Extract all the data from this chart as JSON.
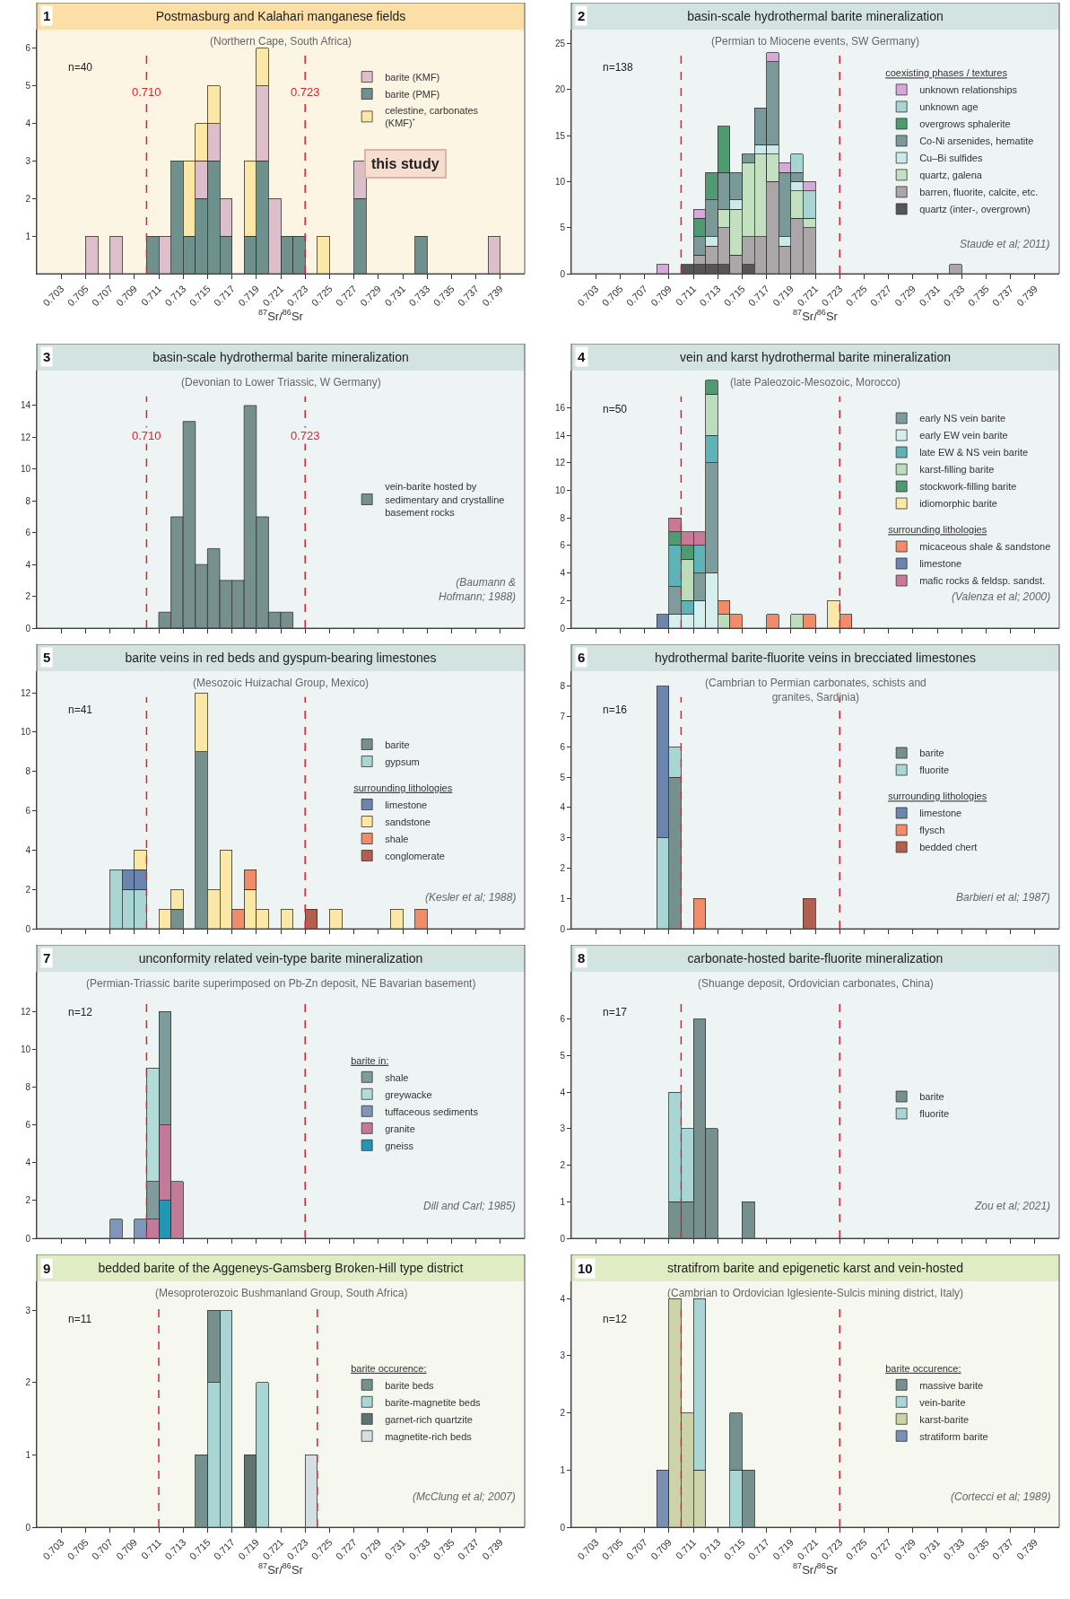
{
  "chart_data": [
    {
      "type": "bar",
      "title": "Postmasburg and Kalahari manganese fields",
      "subtitle": "(Northern Cape, South Africa)",
      "xlabel": "$^{87}$Sr/$^{86}$Sr",
      "stacked": true,
      "legend": "top right",
      "x": [
        0.7055,
        0.7075,
        0.7105,
        0.7115,
        0.7125,
        0.7135,
        0.7145,
        0.7155,
        0.7165,
        0.7185,
        0.7195,
        0.7205,
        0.7215,
        0.7225,
        0.7245,
        0.7275,
        0.7325,
        0.7385
      ],
      "series": [
        {
          "name": "barite (PMF)",
          "color": "#6e918e",
          "values": [
            null,
            null,
            1,
            null,
            3,
            1,
            2,
            3,
            1,
            1,
            3,
            null,
            1,
            1,
            null,
            2,
            1,
            null
          ]
        },
        {
          "name": "barite (KMF)",
          "color": "#dcbfcb",
          "values": [
            1,
            1,
            null,
            1,
            null,
            null,
            1,
            1,
            1,
            null,
            2,
            2,
            null,
            null,
            null,
            1,
            null,
            1
          ]
        },
        {
          "name": "celestine, carbonates (KMF)$^{*}$",
          "color": "#fbe8a6",
          "values": [
            null,
            null,
            null,
            null,
            null,
            2,
            1,
            1,
            null,
            2,
            1,
            null,
            null,
            null,
            1,
            null,
            null,
            null
          ]
        }
      ],
      "xlim": [
        0.701,
        0.741
      ],
      "xticks": [
        0.703,
        0.705,
        0.707,
        0.709,
        0.711,
        0.713,
        0.715,
        0.717,
        0.719,
        0.721,
        0.723,
        0.725,
        0.727,
        0.729,
        0.731,
        0.733,
        0.735,
        0.737,
        0.739
      ],
      "ylim": [
        0,
        6.5
      ],
      "yticks": [
        1,
        2,
        3,
        4,
        5,
        6
      ],
      "ref_lines": [
        {
          "axis": "x",
          "value": 0.71,
          "label": "0.710",
          "color": "#e02030",
          "line_style": "dashed"
        },
        {
          "axis": "x",
          "value": 0.723,
          "label": "0.723",
          "color": "#e02030",
          "line_style": "dashed"
        }
      ],
      "annotations": [
        "1",
        "n=40",
        "this study"
      ]
    },
    {
      "type": "bar",
      "title": "basin-scale hydrothermal barite mineralization",
      "subtitle": "(Permian to Miocene events, SW Germany)",
      "xlabel": "$^{87}$Sr/$^{86}$Sr",
      "stacked": true,
      "legend": "top right",
      "legend_title": "coexisting phases / textures",
      "x": [
        0.7085,
        0.7105,
        0.7115,
        0.7125,
        0.7135,
        0.7145,
        0.7155,
        0.7165,
        0.7175,
        0.7185,
        0.7195,
        0.7205,
        0.7325
      ],
      "series": [
        {
          "name": "quartz (inter-, overgrown)",
          "color": "#555555",
          "values": [
            null,
            1,
            1,
            1,
            1,
            null,
            1,
            null,
            null,
            null,
            null,
            null,
            null
          ]
        },
        {
          "name": "barren, fluorite, calcite, etc.",
          "color": "#aba7a9",
          "values": [
            null,
            null,
            1,
            2,
            4,
            2,
            3,
            4,
            10,
            3,
            6,
            5,
            1
          ]
        },
        {
          "name": "quartz, galena",
          "color": "#c3e1c1",
          "values": [
            null,
            null,
            null,
            null,
            2,
            5,
            8,
            9,
            3,
            null,
            3,
            1,
            null
          ]
        },
        {
          "name": "Cu–Bi sulfides",
          "color": "#cdeaea",
          "values": [
            null,
            null,
            null,
            1,
            null,
            1,
            null,
            1,
            1,
            1,
            1,
            null,
            null
          ]
        },
        {
          "name": "Co-Ni arsenides, hematite",
          "color": "#7a9a99",
          "values": [
            null,
            null,
            2,
            4,
            4,
            3,
            1,
            4,
            9,
            7,
            1,
            null,
            null
          ]
        },
        {
          "name": "overgrows sphalerite",
          "color": "#4f9a72",
          "values": [
            null,
            null,
            2,
            3,
            5,
            null,
            null,
            null,
            null,
            null,
            null,
            null,
            null
          ]
        },
        {
          "name": "unknown age",
          "color": "#a8d4d4",
          "values": [
            null,
            null,
            null,
            null,
            null,
            null,
            null,
            null,
            null,
            null,
            2,
            3,
            null
          ]
        },
        {
          "name": "unknown relationships",
          "color": "#d9a8da",
          "values": [
            1,
            null,
            1,
            null,
            null,
            null,
            null,
            null,
            1,
            1,
            null,
            1,
            null
          ]
        }
      ],
      "xlim": [
        0.701,
        0.741
      ],
      "xticks": [
        0.703,
        0.705,
        0.707,
        0.709,
        0.711,
        0.713,
        0.715,
        0.717,
        0.719,
        0.721,
        0.723,
        0.725,
        0.727,
        0.729,
        0.731,
        0.733,
        0.735,
        0.737,
        0.739
      ],
      "ylim": [
        0,
        26.5
      ],
      "yticks": [
        0,
        5,
        10,
        15,
        20,
        25
      ],
      "ref_lines": [
        {
          "axis": "x",
          "value": 0.71,
          "color": "#e02030",
          "line_style": "dashed"
        },
        {
          "axis": "x",
          "value": 0.723,
          "color": "#e02030",
          "line_style": "dashed"
        }
      ],
      "annotations": [
        "2",
        "n=138",
        "Staude et al; 2011)"
      ]
    },
    {
      "type": "bar",
      "title": "basin-scale hydrothermal barite mineralization",
      "subtitle": "(Devonian to Lower Triassic, W Germany)",
      "stacked": true,
      "legend": "right",
      "tick_labels": "y",
      "x": [
        0.7115,
        0.7125,
        0.7135,
        0.7145,
        0.7155,
        0.7165,
        0.7175,
        0.7185,
        0.7195,
        0.7205,
        0.7215
      ],
      "series": [
        {
          "name": "vein-barite hosted by sedimentary and crystalline basement rocks",
          "color": "#76908e",
          "values": [
            1,
            7,
            13,
            4,
            5,
            3,
            3,
            14,
            7,
            1,
            1
          ]
        }
      ],
      "xlim": [
        0.701,
        0.741
      ],
      "xticks": [
        0.703,
        0.705,
        0.707,
        0.709,
        0.711,
        0.713,
        0.715,
        0.717,
        0.719,
        0.721,
        0.723,
        0.725,
        0.727,
        0.729,
        0.731,
        0.733,
        0.735,
        0.737,
        0.739
      ],
      "ylim": [
        0,
        16.2
      ],
      "yticks": [
        0,
        2,
        4,
        6,
        8,
        10,
        12,
        14
      ],
      "ref_lines": [
        {
          "axis": "x",
          "value": 0.71,
          "label": "0.710",
          "color": "#e02030",
          "line_style": "dashed"
        },
        {
          "axis": "x",
          "value": 0.723,
          "label": "0.723",
          "color": "#e02030",
          "line_style": "dashed"
        }
      ],
      "annotations": [
        "3",
        "(Baumann & Hofmann; 1988)"
      ]
    },
    {
      "type": "bar",
      "title": "vein and karst hydrothermal barite mineralization",
      "subtitle": "(late Paleozoic-Mesozoic, Morocco)",
      "stacked": true,
      "legend": "right",
      "tick_labels": "y",
      "x": [
        0.7085,
        0.7095,
        0.7105,
        0.7115,
        0.7125,
        0.7135,
        0.7145,
        0.7175,
        0.7195,
        0.7205,
        0.7225,
        0.7235
      ],
      "series": [
        {
          "name": "early EW vein barite",
          "color": "#d5eeee",
          "values": [
            null,
            1,
            1,
            2,
            4,
            null,
            null,
            null,
            null,
            null,
            null,
            null
          ]
        },
        {
          "name": "early NS vein barite",
          "color": "#7f9c9c",
          "values": [
            null,
            2,
            null,
            2,
            8,
            null,
            null,
            null,
            null,
            null,
            null,
            null
          ]
        },
        {
          "name": "late EW & NS vein barite",
          "color": "#5fb3b8",
          "values": [
            null,
            3,
            1,
            2,
            2,
            null,
            null,
            null,
            null,
            null,
            null,
            null
          ]
        },
        {
          "name": "karst-filling barite",
          "color": "#bcdcbc",
          "values": [
            null,
            null,
            3,
            null,
            3,
            1,
            null,
            null,
            1,
            null,
            null,
            null
          ]
        },
        {
          "name": "stockwork-filling barite",
          "color": "#4f9a72",
          "values": [
            null,
            1,
            1,
            null,
            1,
            null,
            null,
            null,
            null,
            null,
            null,
            null
          ]
        },
        {
          "name": "idiomorphic barite",
          "color": "#fbe8a6",
          "values": [
            null,
            null,
            null,
            null,
            null,
            null,
            null,
            null,
            null,
            null,
            2,
            null
          ]
        },
        {
          "name": "micaceous shale & sandstone",
          "color": "#f08c6a",
          "values": [
            null,
            null,
            null,
            null,
            null,
            1,
            1,
            1,
            null,
            1,
            null,
            1
          ]
        },
        {
          "name": "limestone",
          "color": "#6b85ae",
          "values": [
            1,
            null,
            null,
            null,
            null,
            null,
            null,
            null,
            null,
            null,
            null,
            null
          ]
        },
        {
          "name": "mafic rocks & feldsp. sandst.",
          "color": "#c97896",
          "values": [
            null,
            1,
            1,
            1,
            null,
            null,
            null,
            null,
            null,
            null,
            null,
            null
          ]
        }
      ],
      "xlim": [
        0.701,
        0.741
      ],
      "xticks": [
        0.703,
        0.705,
        0.707,
        0.709,
        0.711,
        0.713,
        0.715,
        0.717,
        0.719,
        0.721,
        0.723,
        0.725,
        0.727,
        0.729,
        0.731,
        0.733,
        0.735,
        0.737,
        0.739
      ],
      "ylim": [
        0,
        18.7
      ],
      "yticks": [
        0,
        2,
        4,
        6,
        8,
        10,
        12,
        14,
        16
      ],
      "ref_lines": [
        {
          "axis": "x",
          "value": 0.71,
          "color": "#e02030",
          "line_style": "dashed"
        },
        {
          "axis": "x",
          "value": 0.723,
          "color": "#e02030",
          "line_style": "dashed"
        }
      ],
      "annotations": [
        "4",
        "n=50",
        "surrounding lithologies",
        "(Valenza et al; 2000)"
      ]
    },
    {
      "type": "bar",
      "title": "barite veins in red beds and gyspum-bearing limestones",
      "subtitle": "(Mesozoic Huizachal Group, Mexico)",
      "stacked": true,
      "legend": "right",
      "tick_labels": "y",
      "x": [
        0.7075,
        0.7085,
        0.7095,
        0.7115,
        0.7125,
        0.7145,
        0.7155,
        0.7165,
        0.7175,
        0.7185,
        0.7195,
        0.7215,
        0.7235,
        0.7255,
        0.7305,
        0.7325
      ],
      "series": [
        {
          "name": "barite",
          "color": "#76908e",
          "values": [
            null,
            null,
            null,
            null,
            1,
            9,
            null,
            null,
            null,
            null,
            null,
            null,
            null,
            null,
            null,
            null
          ]
        },
        {
          "name": "gypsum",
          "color": "#a9d6d4",
          "values": [
            3,
            2,
            2,
            null,
            null,
            null,
            null,
            null,
            null,
            null,
            null,
            null,
            null,
            null,
            null,
            null
          ]
        },
        {
          "name": "limestone",
          "color": "#6b85ae",
          "values": [
            null,
            1,
            1,
            null,
            null,
            null,
            null,
            null,
            null,
            null,
            null,
            null,
            null,
            null,
            null,
            null
          ]
        },
        {
          "name": "sandstone",
          "color": "#fbe8a6",
          "values": [
            null,
            null,
            1,
            1,
            1,
            3,
            2,
            4,
            null,
            2,
            1,
            1,
            null,
            1,
            1,
            null
          ]
        },
        {
          "name": "shale",
          "color": "#f08c6a",
          "values": [
            null,
            null,
            null,
            null,
            null,
            null,
            null,
            null,
            1,
            1,
            null,
            null,
            null,
            null,
            null,
            1
          ]
        },
        {
          "name": "conglomerate",
          "color": "#b25f50",
          "values": [
            null,
            null,
            null,
            null,
            null,
            null,
            null,
            null,
            null,
            null,
            null,
            null,
            1,
            null,
            null,
            null
          ]
        }
      ],
      "xlim": [
        0.701,
        0.741
      ],
      "xticks": [
        0.703,
        0.705,
        0.707,
        0.709,
        0.711,
        0.713,
        0.715,
        0.717,
        0.719,
        0.721,
        0.723,
        0.725,
        0.727,
        0.729,
        0.731,
        0.733,
        0.735,
        0.737,
        0.739
      ],
      "ylim": [
        0,
        13.1
      ],
      "yticks": [
        0,
        2,
        4,
        6,
        8,
        10,
        12
      ],
      "ref_lines": [
        {
          "axis": "x",
          "value": 0.71,
          "color": "#e02030",
          "line_style": "dashed"
        },
        {
          "axis": "x",
          "value": 0.723,
          "color": "#e02030",
          "line_style": "dashed"
        }
      ],
      "annotations": [
        "5",
        "n=41",
        "surrounding lithologies",
        "(Kesler et al; 1988)"
      ]
    },
    {
      "type": "bar",
      "title": "hydrothermal barite-fluorite veins in brecciated limestones",
      "subtitle": "(Cambrian to Permian carbonates, schists and granites, Sardinia)",
      "stacked": true,
      "legend": "right",
      "tick_labels": "y",
      "x": [
        0.7085,
        0.7095,
        0.7115,
        0.7205
      ],
      "series": [
        {
          "name": "barite",
          "color": "#76908e",
          "values": [
            null,
            5,
            null,
            null
          ]
        },
        {
          "name": "fluorite",
          "color": "#a9d6d4",
          "values": [
            3,
            1,
            null,
            null
          ]
        },
        {
          "name": "limestone",
          "color": "#6b85ae",
          "values": [
            5,
            null,
            null,
            null
          ]
        },
        {
          "name": "flysch",
          "color": "#f08c6a",
          "values": [
            null,
            null,
            1,
            null
          ]
        },
        {
          "name": "bedded chert",
          "color": "#b25f50",
          "values": [
            null,
            null,
            null,
            1
          ]
        }
      ],
      "xlim": [
        0.701,
        0.741
      ],
      "xticks": [
        0.703,
        0.705,
        0.707,
        0.709,
        0.711,
        0.713,
        0.715,
        0.717,
        0.719,
        0.721,
        0.723,
        0.725,
        0.727,
        0.729,
        0.731,
        0.733,
        0.735,
        0.737,
        0.739
      ],
      "ylim": [
        0,
        8.5
      ],
      "yticks": [
        0,
        1,
        2,
        3,
        4,
        5,
        6,
        7,
        8
      ],
      "ref_lines": [
        {
          "axis": "x",
          "value": 0.71,
          "color": "#e02030",
          "line_style": "dashed"
        },
        {
          "axis": "x",
          "value": 0.723,
          "color": "#e02030",
          "line_style": "dashed"
        }
      ],
      "annotations": [
        "6",
        "n=16",
        "surrounding lithologies",
        "Barbieri et al; 1987)"
      ]
    },
    {
      "type": "bar",
      "title": "unconformity related vein-type barite mineralization",
      "subtitle": "(Permian-Triassic barite superimposed on Pb-Zn deposit, NE Bavarian basement)",
      "stacked": true,
      "legend": "right",
      "legend_title": "barite in:",
      "tick_labels": "y",
      "x": [
        0.7075,
        0.7095,
        0.7105,
        0.7115,
        0.7125
      ],
      "series": [
        {
          "name": "gneiss",
          "color": "#2196b5",
          "values": [
            null,
            null,
            null,
            2,
            null
          ]
        },
        {
          "name": "granite",
          "color": "#c27a98",
          "values": [
            null,
            null,
            1,
            4,
            3
          ]
        },
        {
          "name": "shale",
          "color": "#7f9c9c",
          "values": [
            null,
            null,
            2,
            6,
            null
          ]
        },
        {
          "name": "greywacke",
          "color": "#b1dcd8",
          "values": [
            null,
            null,
            6,
            null,
            null
          ]
        },
        {
          "name": "tuffaceous sediments",
          "color": "#8096b8",
          "values": [
            1,
            1,
            null,
            null,
            null
          ]
        }
      ],
      "xlim": [
        0.701,
        0.741
      ],
      "xticks": [
        0.703,
        0.705,
        0.707,
        0.709,
        0.711,
        0.713,
        0.715,
        0.717,
        0.719,
        0.721,
        0.723,
        0.725,
        0.727,
        0.729,
        0.731,
        0.733,
        0.735,
        0.737,
        0.739
      ],
      "ylim": [
        0,
        14.1
      ],
      "yticks": [
        0,
        2,
        4,
        6,
        8,
        10,
        12
      ],
      "ref_lines": [
        {
          "axis": "x",
          "value": 0.71,
          "color": "#e02030",
          "line_style": "dashed"
        },
        {
          "axis": "x",
          "value": 0.723,
          "color": "#e02030",
          "line_style": "dashed"
        }
      ],
      "annotations": [
        "7",
        "n=12",
        "Dill and Carl; 1985)"
      ]
    },
    {
      "type": "bar",
      "title": "carbonate-hosted barite-fluorite mineralization",
      "subtitle": "(Shuange deposit, Ordovician carbonates, China)",
      "stacked": true,
      "legend": "right",
      "tick_labels": "y",
      "x": [
        0.7095,
        0.7105,
        0.7115,
        0.7125,
        0.7155
      ],
      "series": [
        {
          "name": "barite",
          "color": "#76908e",
          "values": [
            1,
            1,
            6,
            3,
            1
          ]
        },
        {
          "name": "fluorite",
          "color": "#a9d6d4",
          "values": [
            3,
            2,
            null,
            null,
            null
          ]
        }
      ],
      "xlim": [
        0.701,
        0.741
      ],
      "xticks": [
        0.703,
        0.705,
        0.707,
        0.709,
        0.711,
        0.713,
        0.715,
        0.717,
        0.719,
        0.721,
        0.723,
        0.725,
        0.727,
        0.729,
        0.731,
        0.733,
        0.735,
        0.737,
        0.739
      ],
      "ylim": [
        0,
        7.3
      ],
      "yticks": [
        0,
        1,
        2,
        3,
        4,
        5,
        6
      ],
      "ref_lines": [
        {
          "axis": "x",
          "value": 0.71,
          "color": "#e02030",
          "line_style": "dashed"
        },
        {
          "axis": "x",
          "value": 0.723,
          "color": "#e02030",
          "line_style": "dashed"
        }
      ],
      "annotations": [
        "8",
        "n=17",
        "Zou et al; 2021)"
      ]
    },
    {
      "type": "bar",
      "title": "bedded barite of the Aggeneys-Gamsberg Broken-Hill type district",
      "subtitle": "(Mesoproterozoic Bushmanland Group, South Africa)",
      "xlabel": "$^{87}$Sr/$^{86}$Sr",
      "stacked": true,
      "legend": "right",
      "legend_title": "barite occurence:",
      "x": [
        0.7145,
        0.7155,
        0.7165,
        0.7185,
        0.7195,
        0.7235
      ],
      "series": [
        {
          "name": "barite-magnetite beds",
          "color": "#a9d6d4",
          "values": [
            null,
            2,
            3,
            null,
            2,
            null
          ]
        },
        {
          "name": "barite beds",
          "color": "#76908e",
          "values": [
            1,
            1,
            null,
            null,
            null,
            null
          ]
        },
        {
          "name": "garnet-rich quartzite",
          "color": "#5e7372",
          "values": [
            null,
            null,
            null,
            1,
            null,
            null
          ]
        },
        {
          "name": "magnetite-rich beds",
          "color": "#d5dfe2",
          "values": [
            null,
            null,
            null,
            null,
            null,
            1
          ]
        }
      ],
      "xlim": [
        0.701,
        0.741
      ],
      "xticks": [
        0.703,
        0.705,
        0.707,
        0.709,
        0.711,
        0.713,
        0.715,
        0.717,
        0.719,
        0.721,
        0.723,
        0.725,
        0.727,
        0.729,
        0.731,
        0.733,
        0.735,
        0.737,
        0.739
      ],
      "ylim": [
        0,
        3.4
      ],
      "yticks": [
        0,
        1,
        2,
        3
      ],
      "ref_lines": [
        {
          "axis": "x",
          "value": 0.711,
          "color": "#e02030",
          "line_style": "dashed"
        },
        {
          "axis": "x",
          "value": 0.724,
          "color": "#e02030",
          "line_style": "dashed"
        }
      ],
      "annotations": [
        "9",
        "n=11",
        "(McClung et al; 2007)"
      ]
    },
    {
      "type": "bar",
      "title": "stratifrom barite and epigenetic karst and vein-hosted",
      "subtitle": "(Cambrian to Ordovician Iglesiente-Sulcis mining district, Italy)",
      "xlabel": "$^{87}$Sr/$^{86}$Sr",
      "stacked": true,
      "legend": "right",
      "legend_title": "barite occurence:",
      "x": [
        0.7085,
        0.7095,
        0.7105,
        0.7115,
        0.7145,
        0.7155
      ],
      "series": [
        {
          "name": "stratiform barite",
          "color": "#7b8fb5",
          "values": [
            1,
            null,
            null,
            null,
            null,
            null
          ]
        },
        {
          "name": "karst-barite",
          "color": "#cdd3a8",
          "values": [
            null,
            4,
            2,
            1,
            null,
            null
          ]
        },
        {
          "name": "vein-barite",
          "color": "#a9d6d4",
          "values": [
            null,
            null,
            null,
            3,
            1,
            null
          ]
        },
        {
          "name": "massive barite",
          "color": "#76908e",
          "values": [
            null,
            null,
            null,
            null,
            1,
            1
          ]
        }
      ],
      "xlim": [
        0.701,
        0.741
      ],
      "xticks": [
        0.703,
        0.705,
        0.707,
        0.709,
        0.711,
        0.713,
        0.715,
        0.717,
        0.719,
        0.721,
        0.723,
        0.725,
        0.727,
        0.729,
        0.731,
        0.733,
        0.735,
        0.737,
        0.739
      ],
      "ylim": [
        0,
        4.3
      ],
      "yticks": [
        0,
        1,
        2,
        3,
        4
      ],
      "ref_lines": [
        {
          "axis": "x",
          "value": 0.71,
          "color": "#e02030",
          "line_style": "dashed"
        },
        {
          "axis": "x",
          "value": 0.723,
          "color": "#e02030",
          "line_style": "dashed"
        }
      ],
      "annotations": [
        "10",
        "n=12",
        "(Cortecci et al; 1989)"
      ]
    }
  ]
}
